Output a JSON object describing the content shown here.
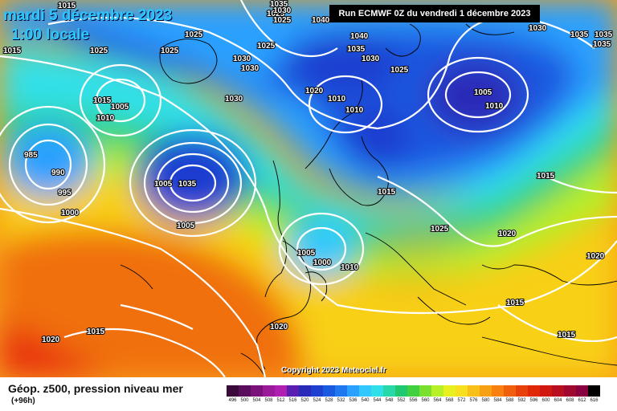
{
  "header": {
    "date": "mardi 5 décembre 2023",
    "time": "1:00 locale",
    "run": "Run ECMWF 0Z du vendredi 1 décembre 2023"
  },
  "copyright": "Copyright 2023 Meteociel.fr",
  "legend": {
    "title": "Géop. z500, pression niveau mer",
    "subtitle": "(+96h)",
    "scale_values": [
      "496",
      "500",
      "504",
      "508",
      "512",
      "516",
      "520",
      "524",
      "528",
      "532",
      "536",
      "540",
      "544",
      "548",
      "552",
      "556",
      "560",
      "564",
      "568",
      "572",
      "576",
      "580",
      "584",
      "588",
      "592",
      "596",
      "600",
      "604",
      "608",
      "612",
      "616"
    ],
    "scale_colors": [
      "#3a0a3a",
      "#5a0d5a",
      "#7a127a",
      "#9a1a9a",
      "#b020b0",
      "#5a1fb0",
      "#2a2ab8",
      "#1f3fd0",
      "#1a5ae0",
      "#1f78f0",
      "#2aa0ff",
      "#30c8ff",
      "#30e0e8",
      "#28d8a8",
      "#20c870",
      "#40d040",
      "#7ae030",
      "#b8f028",
      "#e8f020",
      "#f8e020",
      "#f8c018",
      "#f8a014",
      "#f88010",
      "#f0600c",
      "#e8400a",
      "#e02808",
      "#d01810",
      "#b81020",
      "#a00830",
      "#880040",
      "#000000"
    ]
  },
  "isobars": [
    {
      "label": "1015"
    },
    {
      "label": "1025"
    },
    {
      "label": "1025"
    },
    {
      "label": "1025"
    },
    {
      "label": "1030"
    },
    {
      "label": "1030"
    },
    {
      "label": "1025"
    },
    {
      "label": "1025"
    },
    {
      "label": "1040"
    },
    {
      "label": "1040"
    },
    {
      "label": "1035"
    },
    {
      "label": "1030"
    },
    {
      "label": "1025"
    },
    {
      "label": "1030"
    },
    {
      "label": "1035"
    },
    {
      "label": "1035"
    },
    {
      "label": "1035"
    },
    {
      "label": "1035"
    },
    {
      "label": "1015"
    },
    {
      "label": "1005"
    },
    {
      "label": "1010"
    },
    {
      "label": "1030"
    },
    {
      "label": "1020"
    },
    {
      "label": "1010"
    },
    {
      "label": "1010"
    },
    {
      "label": "1005"
    },
    {
      "label": "1010"
    },
    {
      "label": "985"
    },
    {
      "label": "990"
    },
    {
      "label": "995"
    },
    {
      "label": "1000"
    },
    {
      "label": "1005"
    },
    {
      "label": "1005"
    },
    {
      "label": "1000"
    },
    {
      "label": "1035"
    },
    {
      "label": "1015"
    },
    {
      "label": "1015"
    },
    {
      "label": "1025"
    },
    {
      "label": "1020"
    },
    {
      "label": "1020"
    },
    {
      "label": "1005"
    },
    {
      "label": "1000"
    },
    {
      "label": "1010"
    },
    {
      "label": "1015"
    },
    {
      "label": "1015"
    },
    {
      "label": "1020"
    },
    {
      "label": "1020"
    },
    {
      "label": "1015"
    },
    {
      "label": "1030"
    },
    {
      "label": "1025"
    },
    {
      "label": "1015"
    }
  ],
  "colors": {
    "accent": "#29c8ff",
    "isobar": "#ffffff",
    "coast": "#000000"
  }
}
